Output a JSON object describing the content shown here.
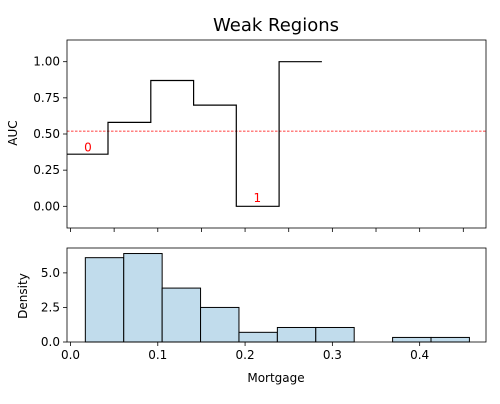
{
  "chart_data": [
    {
      "type": "line",
      "panel": "top",
      "title": "Weak Regions",
      "ylabel": "AUC",
      "xlabel": "",
      "xlim": [
        -0.004,
        0.476
      ],
      "ylim": [
        -0.15,
        1.15
      ],
      "yticks": [
        0.0,
        0.25,
        0.5,
        0.75,
        1.0
      ],
      "ytick_labels": [
        "0.00",
        "0.25",
        "0.50",
        "0.75",
        "1.00"
      ],
      "xticks": [
        0.0,
        0.05,
        0.1,
        0.15,
        0.2,
        0.25,
        0.3,
        0.35,
        0.4,
        0.45
      ],
      "step_series": {
        "name": "",
        "edges": [
          -0.004,
          0.043,
          0.092,
          0.141,
          0.19,
          0.239,
          0.288
        ],
        "values": [
          0.36,
          0.58,
          0.87,
          0.7,
          0.0,
          1.0
        ],
        "color": "#000000"
      },
      "threshold": {
        "value": 0.52,
        "color": "#ff0000",
        "style": "dashed"
      },
      "annotations": [
        {
          "text": "0",
          "x": 0.02,
          "y": 0.38,
          "color": "#ff0000"
        },
        {
          "text": "1",
          "x": 0.214,
          "y": 0.03,
          "color": "#ff0000"
        }
      ],
      "grid": false
    },
    {
      "type": "bar",
      "panel": "bottom",
      "title": "",
      "xlabel": "Mortgage",
      "ylabel": "Density",
      "xlim": [
        -0.004,
        0.476
      ],
      "ylim": [
        0,
        6.8
      ],
      "xticks": [
        0.0,
        0.1,
        0.2,
        0.3,
        0.4
      ],
      "xtick_labels": [
        "0.0",
        "0.1",
        "0.2",
        "0.3",
        "0.4"
      ],
      "yticks": [
        0.0,
        2.5,
        5.0
      ],
      "ytick_labels": [
        "0.0",
        "2.5",
        "5.0"
      ],
      "bin_edges": [
        0.017,
        0.061,
        0.105,
        0.149,
        0.193,
        0.237,
        0.281,
        0.325,
        0.369,
        0.413,
        0.457
      ],
      "values": [
        6.1,
        6.4,
        3.9,
        2.5,
        0.7,
        1.05,
        1.05,
        0.0,
        0.33,
        0.33
      ],
      "fill_color": "#c1dcec",
      "edge_color": "#000000",
      "grid": false
    }
  ]
}
